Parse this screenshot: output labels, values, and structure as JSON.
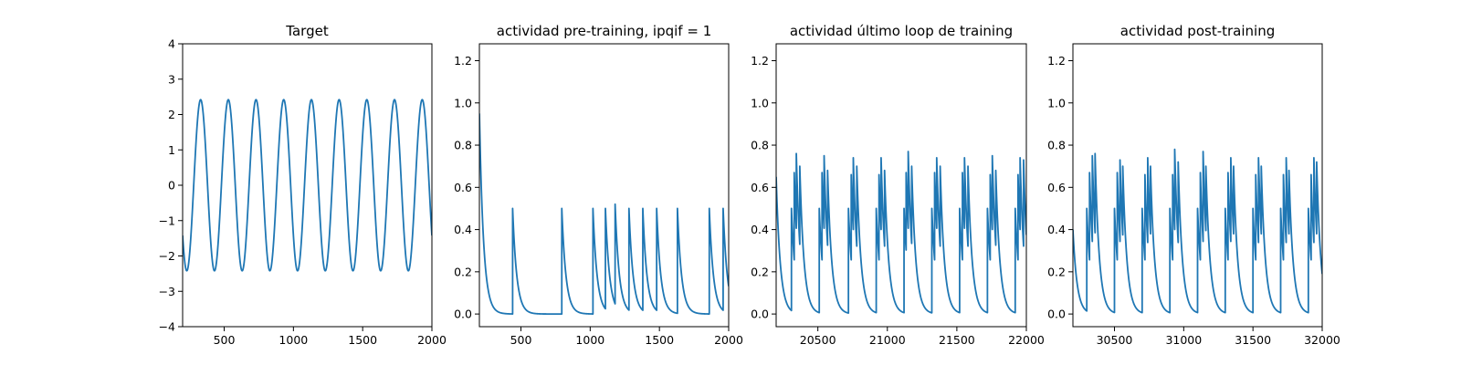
{
  "chart_data": [
    {
      "type": "line",
      "title": "Target",
      "xlabel": "",
      "ylabel": "",
      "xlim": [
        200,
        2000
      ],
      "ylim": [
        -4,
        4
      ],
      "xticks": [
        500,
        1000,
        1500,
        2000
      ],
      "yticks": [
        -4,
        -3,
        -2,
        -1,
        0,
        1,
        2,
        3,
        4
      ],
      "grid": false,
      "series": [
        {
          "color": "#1f77b4",
          "kind": "sine",
          "amplitude": 2.42,
          "period": 200,
          "peak_x": 330,
          "points": []
        }
      ]
    },
    {
      "type": "line",
      "title": "actividad pre-training, ipqif = 1",
      "xlabel": "",
      "ylabel": "",
      "xlim": [
        200,
        2000
      ],
      "ylim": [
        -0.06,
        1.28
      ],
      "xticks": [
        500,
        1000,
        1500,
        2000
      ],
      "yticks": [
        0.0,
        0.2,
        0.4,
        0.6,
        0.8,
        1.0,
        1.2
      ],
      "grid": false,
      "series": [
        {
          "color": "#1f77b4",
          "kind": "spikes",
          "initial_value": 0.95,
          "decay": 30,
          "spikes": [
            {
              "x": 440,
              "y": 0.5
            },
            {
              "x": 795,
              "y": 0.5
            },
            {
              "x": 1020,
              "y": 0.5
            },
            {
              "x": 1110,
              "y": 0.5
            },
            {
              "x": 1180,
              "y": 0.52
            },
            {
              "x": 1280,
              "y": 0.5
            },
            {
              "x": 1380,
              "y": 0.5
            },
            {
              "x": 1480,
              "y": 0.5
            },
            {
              "x": 1630,
              "y": 0.5
            },
            {
              "x": 1860,
              "y": 0.5
            },
            {
              "x": 1960,
              "y": 0.5
            }
          ]
        }
      ]
    },
    {
      "type": "line",
      "title": "actividad último loop de training",
      "xlabel": "",
      "ylabel": "",
      "xlim": [
        20200,
        22000
      ],
      "ylim": [
        -0.06,
        1.28
      ],
      "xticks": [
        20500,
        21000,
        21500,
        22000
      ],
      "yticks": [
        0.0,
        0.2,
        0.4,
        0.6,
        0.8,
        1.0,
        1.2
      ],
      "grid": false,
      "series": [
        {
          "color": "#1f77b4",
          "kind": "spikes",
          "initial_value": 0.65,
          "decay": 30,
          "spikes": [
            {
              "x": 20310,
              "y": 0.5
            },
            {
              "x": 20330,
              "y": 0.67
            },
            {
              "x": 20345,
              "y": 0.76
            },
            {
              "x": 20370,
              "y": 0.7
            },
            {
              "x": 20510,
              "y": 0.5
            },
            {
              "x": 20530,
              "y": 0.67
            },
            {
              "x": 20545,
              "y": 0.75
            },
            {
              "x": 20570,
              "y": 0.68
            },
            {
              "x": 20720,
              "y": 0.5
            },
            {
              "x": 20740,
              "y": 0.66
            },
            {
              "x": 20755,
              "y": 0.74
            },
            {
              "x": 20780,
              "y": 0.7
            },
            {
              "x": 20920,
              "y": 0.5
            },
            {
              "x": 20940,
              "y": 0.66
            },
            {
              "x": 20955,
              "y": 0.74
            },
            {
              "x": 20980,
              "y": 0.68
            },
            {
              "x": 21120,
              "y": 0.5
            },
            {
              "x": 21135,
              "y": 0.67
            },
            {
              "x": 21150,
              "y": 0.77
            },
            {
              "x": 21175,
              "y": 0.7
            },
            {
              "x": 21320,
              "y": 0.5
            },
            {
              "x": 21340,
              "y": 0.67
            },
            {
              "x": 21355,
              "y": 0.74
            },
            {
              "x": 21380,
              "y": 0.7
            },
            {
              "x": 21520,
              "y": 0.5
            },
            {
              "x": 21540,
              "y": 0.67
            },
            {
              "x": 21555,
              "y": 0.74
            },
            {
              "x": 21580,
              "y": 0.7
            },
            {
              "x": 21720,
              "y": 0.5
            },
            {
              "x": 21740,
              "y": 0.66
            },
            {
              "x": 21755,
              "y": 0.75
            },
            {
              "x": 21780,
              "y": 0.68
            },
            {
              "x": 21920,
              "y": 0.5
            },
            {
              "x": 21940,
              "y": 0.66
            },
            {
              "x": 21955,
              "y": 0.74
            },
            {
              "x": 21980,
              "y": 0.73
            }
          ]
        }
      ]
    },
    {
      "type": "line",
      "title": "actividad post-training",
      "xlabel": "",
      "ylabel": "",
      "xlim": [
        30200,
        32000
      ],
      "ylim": [
        -0.06,
        1.28
      ],
      "xticks": [
        30500,
        31000,
        31500,
        32000
      ],
      "yticks": [
        0.0,
        0.2,
        0.4,
        0.6,
        0.8,
        1.0,
        1.2
      ],
      "grid": false,
      "series": [
        {
          "color": "#1f77b4",
          "kind": "spikes",
          "initial_value": 0.4,
          "decay": 30,
          "spikes": [
            {
              "x": 30300,
              "y": 0.5
            },
            {
              "x": 30320,
              "y": 0.67
            },
            {
              "x": 30340,
              "y": 0.75
            },
            {
              "x": 30360,
              "y": 0.76
            },
            {
              "x": 30500,
              "y": 0.5
            },
            {
              "x": 30520,
              "y": 0.67
            },
            {
              "x": 30540,
              "y": 0.73
            },
            {
              "x": 30560,
              "y": 0.7
            },
            {
              "x": 30700,
              "y": 0.5
            },
            {
              "x": 30720,
              "y": 0.66
            },
            {
              "x": 30740,
              "y": 0.74
            },
            {
              "x": 30760,
              "y": 0.7
            },
            {
              "x": 30900,
              "y": 0.5
            },
            {
              "x": 30920,
              "y": 0.66
            },
            {
              "x": 30935,
              "y": 0.78
            },
            {
              "x": 30960,
              "y": 0.72
            },
            {
              "x": 31100,
              "y": 0.5
            },
            {
              "x": 31120,
              "y": 0.67
            },
            {
              "x": 31140,
              "y": 0.77
            },
            {
              "x": 31160,
              "y": 0.7
            },
            {
              "x": 31300,
              "y": 0.5
            },
            {
              "x": 31320,
              "y": 0.67
            },
            {
              "x": 31340,
              "y": 0.74
            },
            {
              "x": 31360,
              "y": 0.7
            },
            {
              "x": 31500,
              "y": 0.5
            },
            {
              "x": 31520,
              "y": 0.66
            },
            {
              "x": 31540,
              "y": 0.74
            },
            {
              "x": 31560,
              "y": 0.7
            },
            {
              "x": 31700,
              "y": 0.5
            },
            {
              "x": 31720,
              "y": 0.66
            },
            {
              "x": 31740,
              "y": 0.74
            },
            {
              "x": 31760,
              "y": 0.68
            },
            {
              "x": 31900,
              "y": 0.5
            },
            {
              "x": 31920,
              "y": 0.66
            },
            {
              "x": 31940,
              "y": 0.74
            },
            {
              "x": 31960,
              "y": 0.72
            }
          ]
        }
      ]
    }
  ]
}
